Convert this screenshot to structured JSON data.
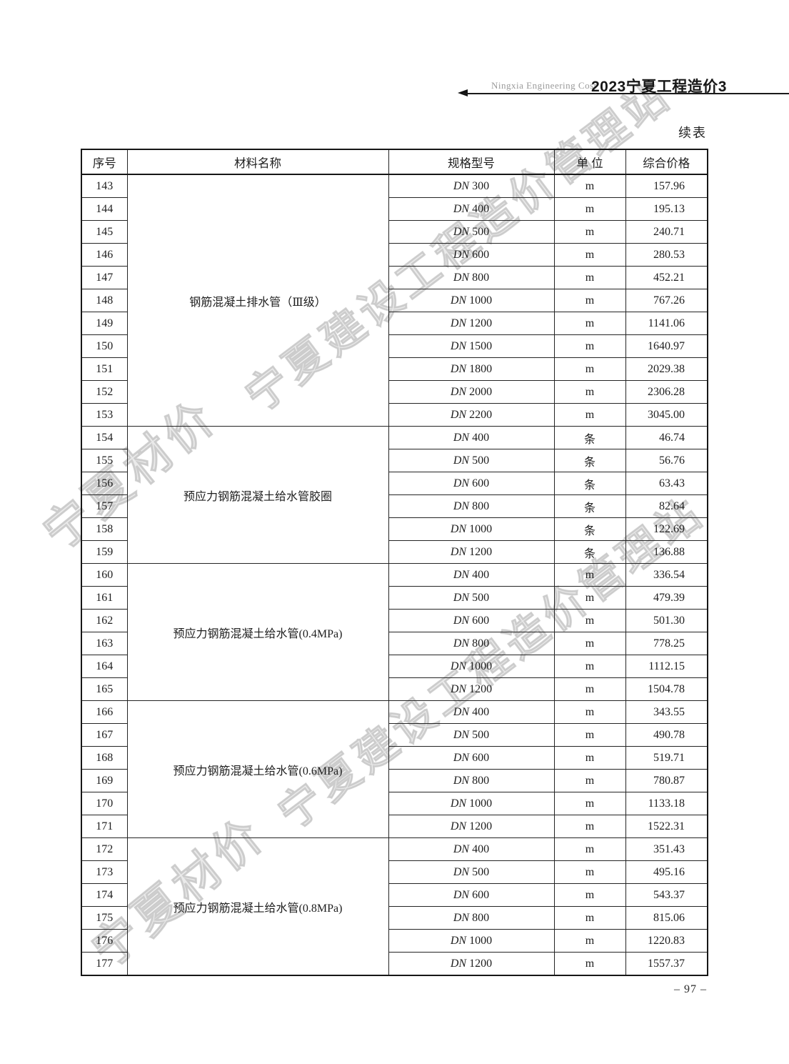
{
  "page": {
    "brand_en": "Ningxia Engineering Cost",
    "title": "2023宁夏工程造价3",
    "continued_label": "续表",
    "page_number": "– 97 –"
  },
  "watermarks": {
    "diagonal_top": "宁夏建设工程造价管理站",
    "diagonal_bottom": "宁夏建设工程造价管理站",
    "left_small": "宁夏材价",
    "bottom_small": "宁夏材价"
  },
  "table": {
    "headers": [
      "序号",
      "材料名称",
      "规格型号",
      "单 位",
      "综合价格"
    ],
    "groups": [
      {
        "name": "钢筋混凝土排水管（Ⅲ级）",
        "rows": [
          {
            "no": "143",
            "spec": "DN 300",
            "unit": "m",
            "price": "157.96"
          },
          {
            "no": "144",
            "spec": "DN 400",
            "unit": "m",
            "price": "195.13"
          },
          {
            "no": "145",
            "spec": "DN 500",
            "unit": "m",
            "price": "240.71"
          },
          {
            "no": "146",
            "spec": "DN 600",
            "unit": "m",
            "price": "280.53"
          },
          {
            "no": "147",
            "spec": "DN 800",
            "unit": "m",
            "price": "452.21"
          },
          {
            "no": "148",
            "spec": "DN 1000",
            "unit": "m",
            "price": "767.26"
          },
          {
            "no": "149",
            "spec": "DN 1200",
            "unit": "m",
            "price": "1141.06"
          },
          {
            "no": "150",
            "spec": "DN 1500",
            "unit": "m",
            "price": "1640.97"
          },
          {
            "no": "151",
            "spec": "DN 1800",
            "unit": "m",
            "price": "2029.38"
          },
          {
            "no": "152",
            "spec": "DN 2000",
            "unit": "m",
            "price": "2306.28"
          },
          {
            "no": "153",
            "spec": "DN 2200",
            "unit": "m",
            "price": "3045.00"
          }
        ]
      },
      {
        "name": "预应力钢筋混凝土给水管胶圈",
        "rows": [
          {
            "no": "154",
            "spec": "DN 400",
            "unit": "条",
            "price": "46.74"
          },
          {
            "no": "155",
            "spec": "DN 500",
            "unit": "条",
            "price": "56.76"
          },
          {
            "no": "156",
            "spec": "DN 600",
            "unit": "条",
            "price": "63.43"
          },
          {
            "no": "157",
            "spec": "DN 800",
            "unit": "条",
            "price": "82.64"
          },
          {
            "no": "158",
            "spec": "DN 1000",
            "unit": "条",
            "price": "122.69"
          },
          {
            "no": "159",
            "spec": "DN 1200",
            "unit": "条",
            "price": "136.88"
          }
        ]
      },
      {
        "name": "预应力钢筋混凝土给水管(0.4MPa)",
        "rows": [
          {
            "no": "160",
            "spec": "DN 400",
            "unit": "m",
            "price": "336.54"
          },
          {
            "no": "161",
            "spec": "DN 500",
            "unit": "m",
            "price": "479.39"
          },
          {
            "no": "162",
            "spec": "DN 600",
            "unit": "m",
            "price": "501.30"
          },
          {
            "no": "163",
            "spec": "DN 800",
            "unit": "m",
            "price": "778.25"
          },
          {
            "no": "164",
            "spec": "DN 1000",
            "unit": "m",
            "price": "1112.15"
          },
          {
            "no": "165",
            "spec": "DN 1200",
            "unit": "m",
            "price": "1504.78"
          }
        ]
      },
      {
        "name": "预应力钢筋混凝土给水管(0.6MPa)",
        "rows": [
          {
            "no": "166",
            "spec": "DN 400",
            "unit": "m",
            "price": "343.55"
          },
          {
            "no": "167",
            "spec": "DN 500",
            "unit": "m",
            "price": "490.78"
          },
          {
            "no": "168",
            "spec": "DN 600",
            "unit": "m",
            "price": "519.71"
          },
          {
            "no": "169",
            "spec": "DN 800",
            "unit": "m",
            "price": "780.87"
          },
          {
            "no": "170",
            "spec": "DN 1000",
            "unit": "m",
            "price": "1133.18"
          },
          {
            "no": "171",
            "spec": "DN 1200",
            "unit": "m",
            "price": "1522.31"
          }
        ]
      },
      {
        "name": "预应力钢筋混凝土给水管(0.8MPa)",
        "rows": [
          {
            "no": "172",
            "spec": "DN 400",
            "unit": "m",
            "price": "351.43"
          },
          {
            "no": "173",
            "spec": "DN 500",
            "unit": "m",
            "price": "495.16"
          },
          {
            "no": "174",
            "spec": "DN 600",
            "unit": "m",
            "price": "543.37"
          },
          {
            "no": "175",
            "spec": "DN 800",
            "unit": "m",
            "price": "815.06"
          },
          {
            "no": "176",
            "spec": "DN 1000",
            "unit": "m",
            "price": "1220.83"
          },
          {
            "no": "177",
            "spec": "DN 1200",
            "unit": "m",
            "price": "1557.37"
          }
        ]
      }
    ]
  }
}
